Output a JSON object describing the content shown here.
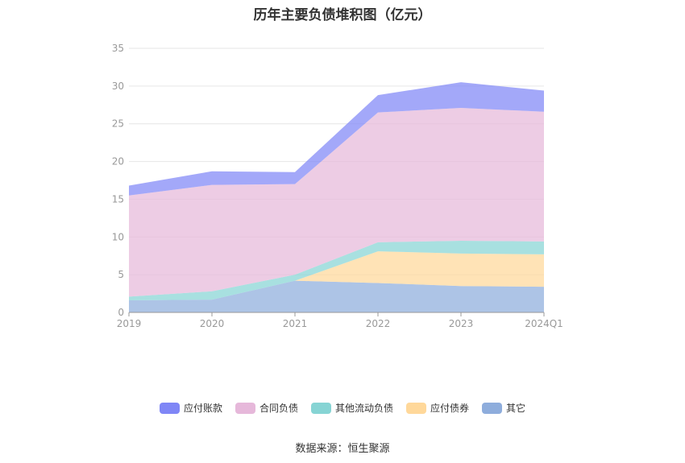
{
  "chart_data": {
    "type": "area",
    "stacked": true,
    "title": "历年主要负债堆积图（亿元）",
    "categories": [
      "2019",
      "2020",
      "2021",
      "2022",
      "2023",
      "2024Q1"
    ],
    "ylim": [
      0,
      35
    ],
    "yticks": [
      0,
      5,
      10,
      15,
      20,
      25,
      30,
      35
    ],
    "grid": true,
    "legend_position": "bottom",
    "series": [
      {
        "name": "其它",
        "values": [
          1.6,
          1.7,
          4.2,
          3.9,
          3.5,
          3.4
        ],
        "color": "#8eaddc"
      },
      {
        "name": "应付债券",
        "values": [
          0.0,
          0.0,
          0.0,
          4.2,
          4.3,
          4.3
        ],
        "color": "#ffd89a"
      },
      {
        "name": "其他流动负债",
        "values": [
          0.5,
          1.1,
          0.8,
          1.2,
          1.7,
          1.7
        ],
        "color": "#86d4d4"
      },
      {
        "name": "合同负债",
        "values": [
          13.4,
          14.1,
          12.0,
          17.2,
          17.6,
          17.2
        ],
        "color": "#e6b8da"
      },
      {
        "name": "应付账款",
        "values": [
          1.3,
          1.8,
          1.6,
          2.3,
          3.4,
          2.8
        ],
        "color": "#7f86f6"
      }
    ],
    "legend_order": [
      "应付账款",
      "合同负债",
      "其他流动负债",
      "应付债券",
      "其它"
    ]
  },
  "source_text": "数据来源：恒生聚源"
}
